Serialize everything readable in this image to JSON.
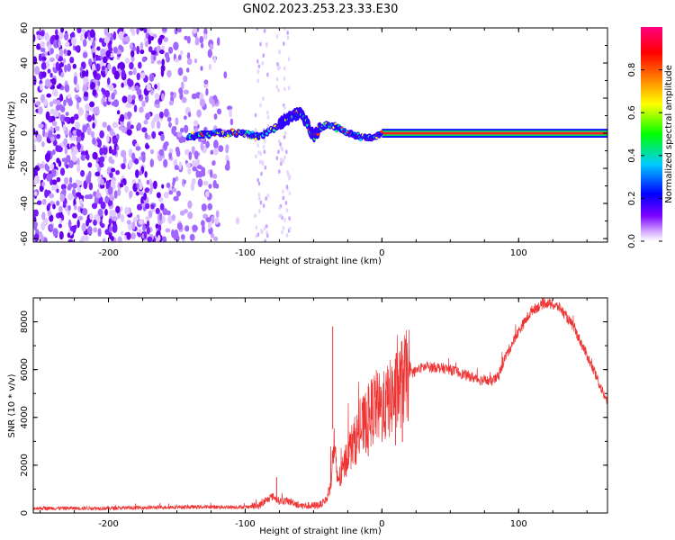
{
  "title": "GN02.2023.253.23.33.E30",
  "chart_data": [
    {
      "type": "heatmap",
      "xlabel": "Height of straight line (km)",
      "ylabel": "Frequency (Hz)",
      "xlim": [
        -255,
        165
      ],
      "ylim": [
        -62,
        60
      ],
      "xticks": [
        -200,
        -100,
        0,
        100
      ],
      "yticks": [
        60,
        40,
        20,
        0,
        -20,
        -40,
        -60
      ],
      "colorbar": {
        "label": "Normalized spectral amplitude",
        "range": [
          0,
          1
        ],
        "ticks": [
          "0.0",
          "0.2",
          "0.4",
          "0.6",
          "0.8"
        ],
        "colors": [
          "#ffffff",
          "#d9b3ff",
          "#7a00ff",
          "#0000ff",
          "#00ccff",
          "#00ff00",
          "#ffff00",
          "#ff8000",
          "#ff0000",
          "#ff0080"
        ]
      },
      "trace": {
        "x": [
          -140,
          -120,
          -100,
          -90,
          -80,
          -70,
          -65,
          -60,
          -55,
          -50,
          -45,
          -40,
          -35,
          -30,
          -25,
          -20,
          -15,
          -10,
          -5,
          0,
          165
        ],
        "y": [
          -2,
          0,
          0,
          -2,
          2,
          8,
          10,
          12,
          6,
          -2,
          3,
          5,
          4,
          2,
          0,
          -1,
          -2,
          -2,
          -2,
          0,
          0
        ]
      }
    },
    {
      "type": "line",
      "xlabel": "Height of straight line (km)",
      "ylabel": "SNR (10 * v/v)",
      "xlim": [
        -255,
        165
      ],
      "ylim": [
        0,
        9000
      ],
      "xticks": [
        -200,
        -100,
        0,
        100
      ],
      "yticks": [
        0,
        2000,
        4000,
        6000,
        8000
      ],
      "color": "#ee3333",
      "series": [
        {
          "x": [
            -255,
            -200,
            -150,
            -120,
            -100,
            -90,
            -85,
            -80,
            -75,
            -70,
            -65,
            -60,
            -55,
            -50,
            -45,
            -40,
            -37,
            -35,
            -33,
            -30,
            -25,
            -20,
            -15,
            -10,
            -5,
            0,
            5,
            10,
            15,
            20,
            30,
            40,
            50,
            60,
            70,
            80,
            85,
            90,
            100,
            110,
            120,
            130,
            140,
            150,
            165
          ],
          "y": [
            200,
            200,
            250,
            250,
            250,
            300,
            500,
            700,
            500,
            500,
            450,
            300,
            300,
            300,
            350,
            600,
            1500,
            3000,
            1500,
            1500,
            2500,
            3000,
            3500,
            4000,
            4500,
            4300,
            4700,
            5000,
            5500,
            5800,
            6100,
            6100,
            6000,
            5800,
            5600,
            5500,
            5700,
            6500,
            7600,
            8500,
            8800,
            8600,
            7800,
            6600,
            4600
          ]
        }
      ],
      "spikes": [
        {
          "x": -36,
          "y": 7800
        },
        {
          "x": 15,
          "y": 6600
        },
        {
          "x": 10,
          "y": 6300
        },
        {
          "x": -10,
          "y": 5300
        },
        {
          "x": -77,
          "y": 1500
        }
      ]
    }
  ]
}
